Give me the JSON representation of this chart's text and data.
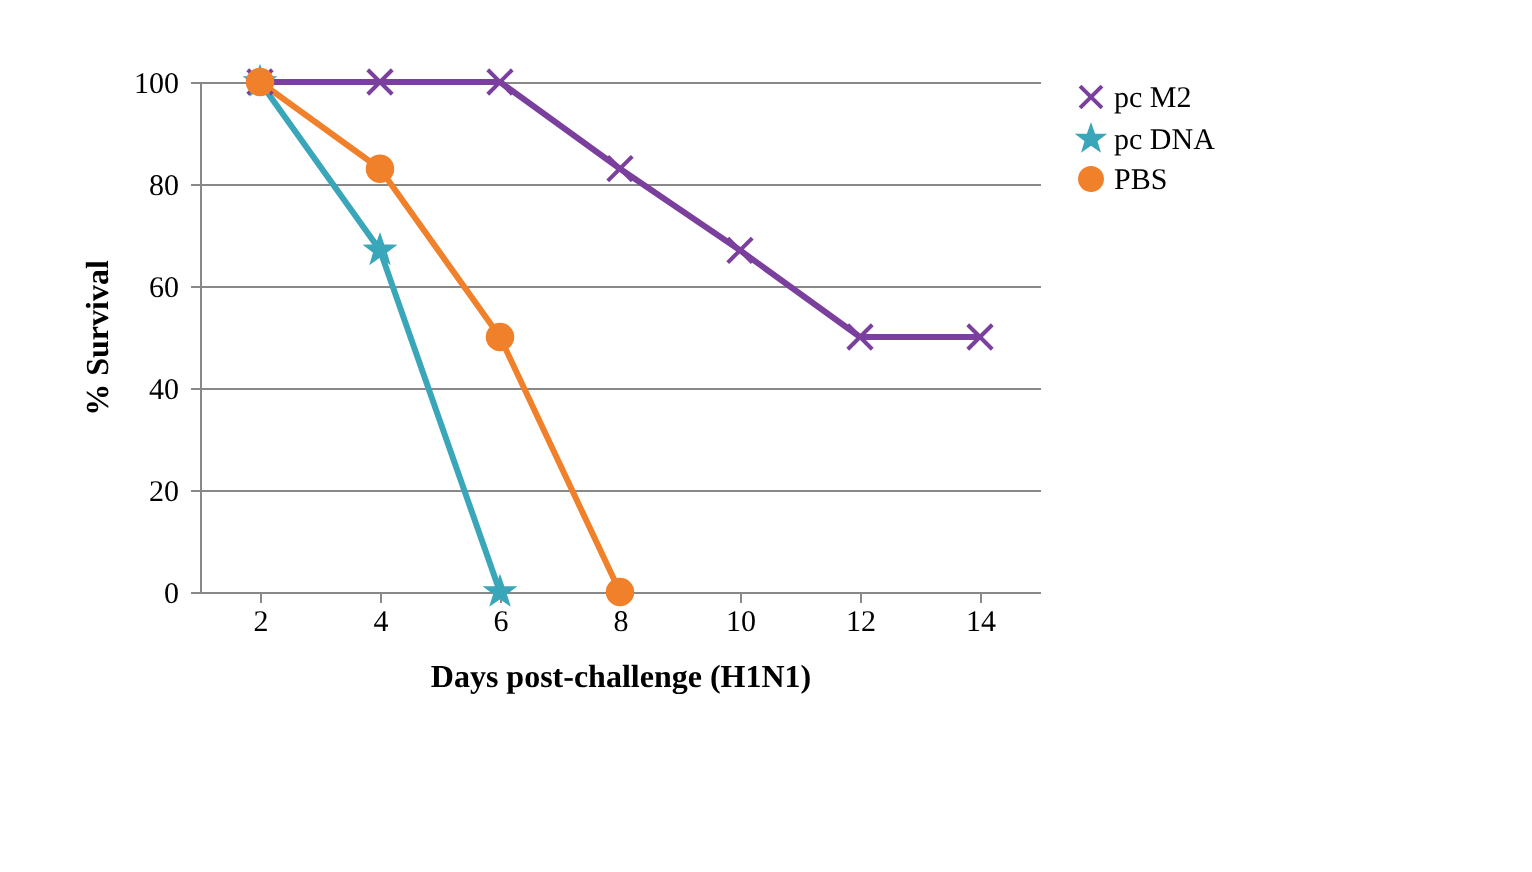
{
  "chart_data": {
    "type": "line",
    "xlabel": "Days post-challenge (H1N1)",
    "ylabel": "% Survival",
    "categories": [
      "2",
      "4",
      "6",
      "8",
      "10",
      "12",
      "14"
    ],
    "series": [
      {
        "name": "pc M2",
        "color": "#7b3f9e",
        "marker": "cross",
        "values": [
          100,
          100,
          100,
          83,
          67,
          50,
          50
        ]
      },
      {
        "name": "pc DNA",
        "color": "#3aa6b9",
        "marker": "star",
        "values": [
          100,
          67,
          0,
          null,
          null,
          null,
          null
        ]
      },
      {
        "name": "PBS",
        "color": "#f0802a",
        "marker": "circle",
        "values": [
          100,
          83,
          50,
          0,
          null,
          null,
          null
        ]
      }
    ],
    "ylim": [
      0,
      100
    ],
    "yticks": [
      0,
      20,
      40,
      60,
      80,
      100
    ],
    "grid": "y",
    "legend": "right",
    "line_style": "solid"
  }
}
